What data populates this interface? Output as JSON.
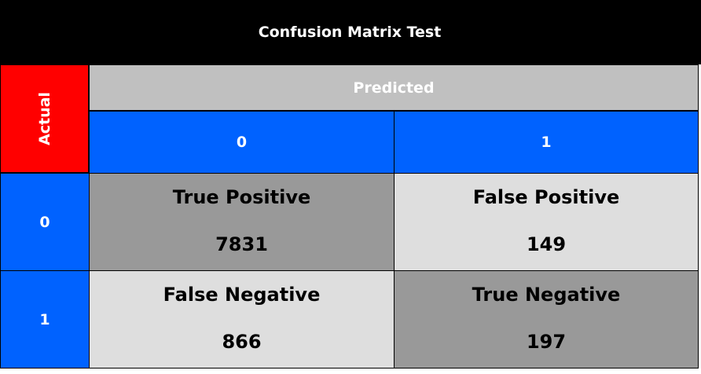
{
  "title": "Confusion Matrix Test",
  "axis": {
    "actual": "Actual",
    "predicted": "Predicted"
  },
  "columns": [
    "0",
    "1"
  ],
  "rows": [
    "0",
    "1"
  ],
  "cells": [
    [
      {
        "label": "True Positive",
        "value": "7831"
      },
      {
        "label": "False Positive",
        "value": "149"
      }
    ],
    [
      {
        "label": "False Negative",
        "value": "866"
      },
      {
        "label": "True Negative",
        "value": "197"
      }
    ]
  ],
  "colors": {
    "title_bg": "#000000",
    "actual_bg": "#ff0000",
    "predicted_bg": "#c0c0c0",
    "header_bg": "#0062ff",
    "diag_cell": "#999999",
    "offdiag_cell": "#dedede"
  }
}
